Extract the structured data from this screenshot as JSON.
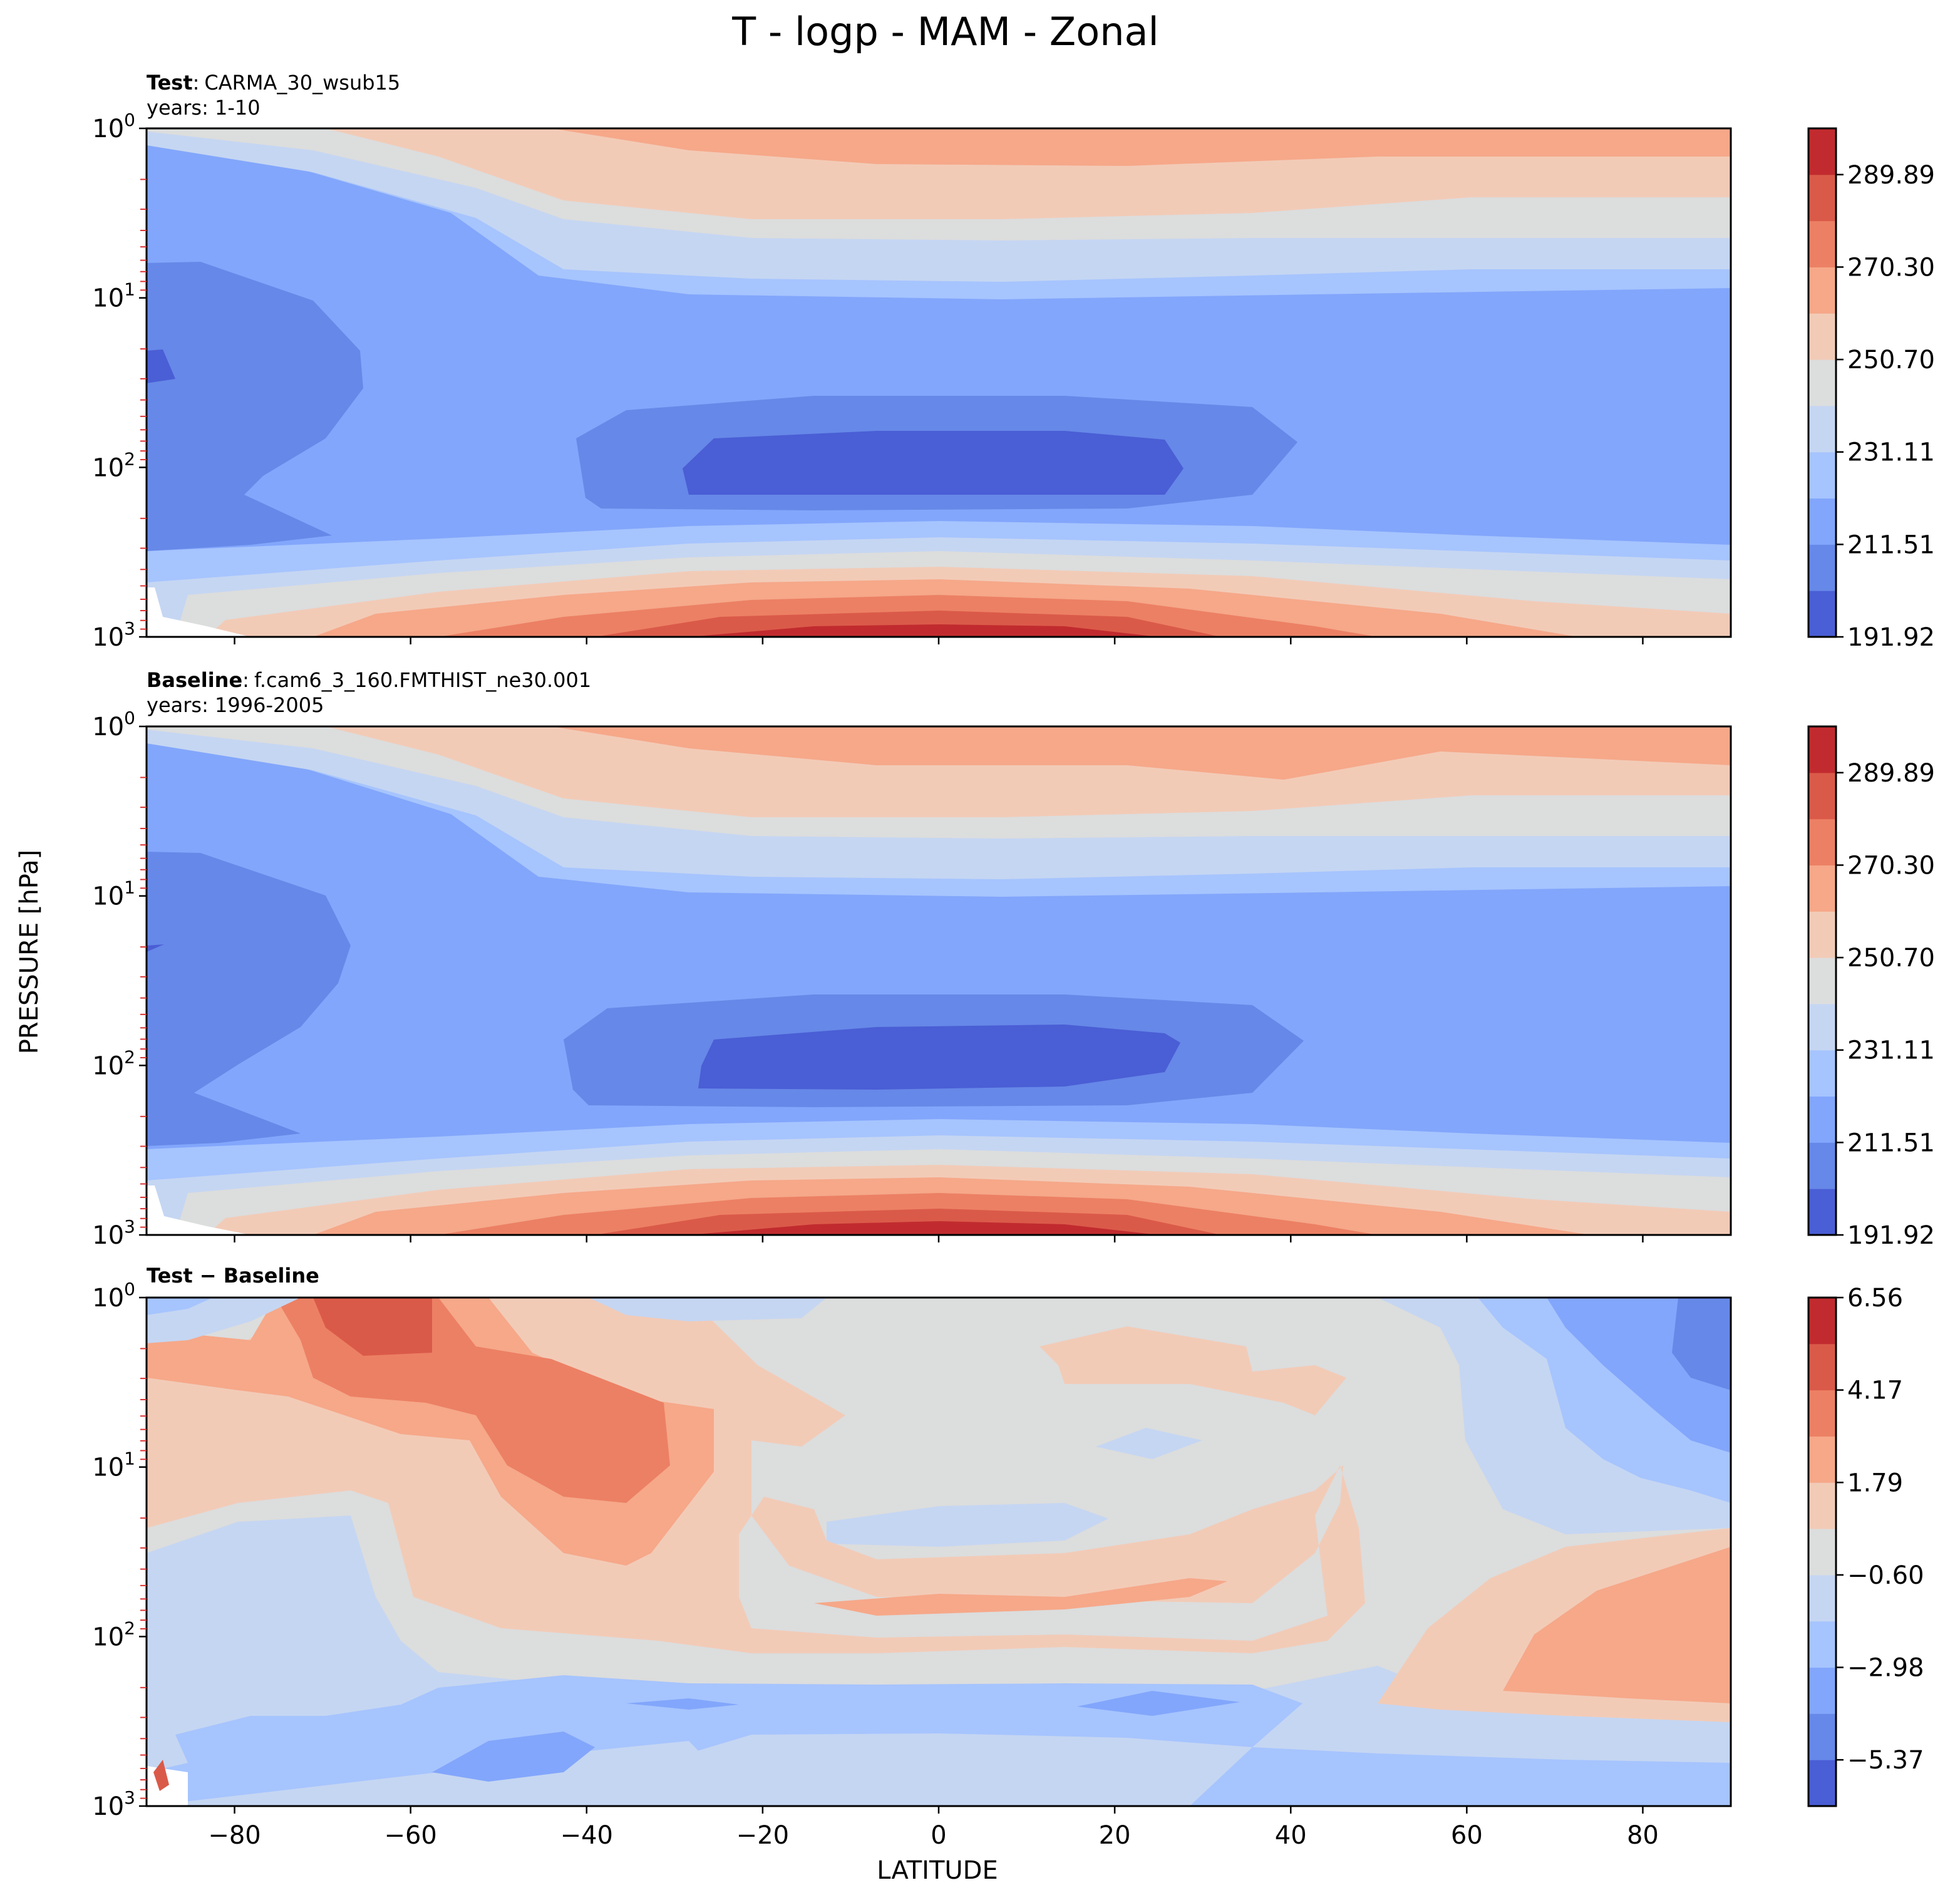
{
  "figure": {
    "title": "T - logp - MAM - Zonal",
    "xlabel": "LATITUDE",
    "ylabel": "PRESSURE [hPa]"
  },
  "colors": {
    "levels": [
      "#4a5ed5",
      "#6688e8",
      "#82a6fb",
      "#a6c4fe",
      "#c5d6f2",
      "#dcdddd",
      "#f2cbb7",
      "#f6a889",
      "#ec8064",
      "#da5a49",
      "#c12b2f"
    ]
  },
  "chart_data": [
    {
      "type": "contourf",
      "name": "test",
      "label_bold": "Test",
      "label_sep": ":",
      "label_value": "CARMA_30_wsub15",
      "years": "years: 1-10",
      "xlim": [
        -90,
        90
      ],
      "ylim_hpa": [
        1,
        1000
      ],
      "yscale": "log",
      "yinverted": true,
      "colorbar_ticks": [
        "289.89",
        "270.30",
        "250.70",
        "231.11",
        "211.51",
        "191.92"
      ],
      "colorbar_range": [
        191.92,
        299.69
      ],
      "n_levels": 11
    },
    {
      "type": "contourf",
      "name": "baseline",
      "label_bold": "Baseline",
      "label_sep": ":",
      "label_value": "f.cam6_3_160.FMTHIST_ne30.001",
      "years": "years: 1996-2005",
      "xlim": [
        -90,
        90
      ],
      "ylim_hpa": [
        1,
        1000
      ],
      "yscale": "log",
      "yinverted": true,
      "colorbar_ticks": [
        "289.89",
        "270.30",
        "250.70",
        "231.11",
        "211.51",
        "191.92"
      ],
      "colorbar_range": [
        191.92,
        299.69
      ],
      "n_levels": 11
    },
    {
      "type": "contourf",
      "name": "difference",
      "label_bold": "Test − Baseline",
      "label_sep": "",
      "label_value": "",
      "years": "",
      "xlim": [
        -90,
        90
      ],
      "ylim_hpa": [
        1,
        1000
      ],
      "yscale": "log",
      "yinverted": true,
      "colorbar_ticks": [
        "6.56",
        "4.17",
        "1.79",
        "−0.60",
        "−2.98",
        "−5.37"
      ],
      "colorbar_range": [
        -6.56,
        6.56
      ],
      "n_levels": 11
    }
  ],
  "axes": {
    "x_ticks": [
      "−80",
      "−60",
      "−40",
      "−20",
      "0",
      "20",
      "40",
      "60",
      "80"
    ],
    "x_tick_values": [
      -80,
      -60,
      -40,
      -20,
      0,
      20,
      40,
      60,
      80
    ],
    "y_tick_values": [
      1,
      10,
      100,
      1000
    ],
    "y_ticks": [
      {
        "base": "10",
        "exp": "0"
      },
      {
        "base": "10",
        "exp": "1"
      },
      {
        "base": "10",
        "exp": "2"
      },
      {
        "base": "10",
        "exp": "3"
      }
    ]
  }
}
